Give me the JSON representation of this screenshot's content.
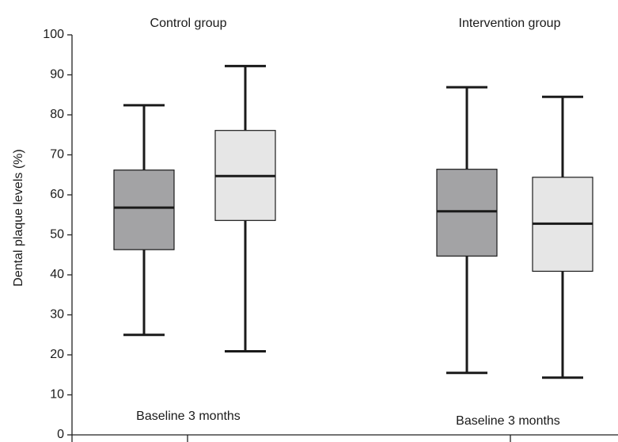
{
  "chart_data": {
    "type": "box",
    "ylabel": "Dental plaque levels (%)",
    "ylim": [
      0,
      100
    ],
    "yticks": [
      "0",
      "10",
      "20",
      "30",
      "40",
      "50",
      "60",
      "70",
      "80",
      "90",
      "100"
    ],
    "grid": false,
    "groups": [
      {
        "title": "Control group",
        "caption": "Baseline 3 months",
        "boxes": [
          {
            "min": 25,
            "q1": 46.3,
            "median": 56.8,
            "q3": 66.2,
            "max": 82.4,
            "color": "#a3a3a5"
          },
          {
            "min": 20.9,
            "q1": 53.6,
            "median": 64.7,
            "q3": 76.1,
            "max": 92.2,
            "color": "#e6e6e6"
          }
        ]
      },
      {
        "title": "Intervention group",
        "caption": "Baseline 3 months",
        "boxes": [
          {
            "min": 15.5,
            "q1": 44.7,
            "median": 55.9,
            "q3": 66.4,
            "max": 86.9,
            "color": "#a3a3a5"
          },
          {
            "min": 14.3,
            "q1": 40.9,
            "median": 52.8,
            "q3": 64.4,
            "max": 84.5,
            "color": "#e6e6e6"
          }
        ]
      }
    ]
  }
}
